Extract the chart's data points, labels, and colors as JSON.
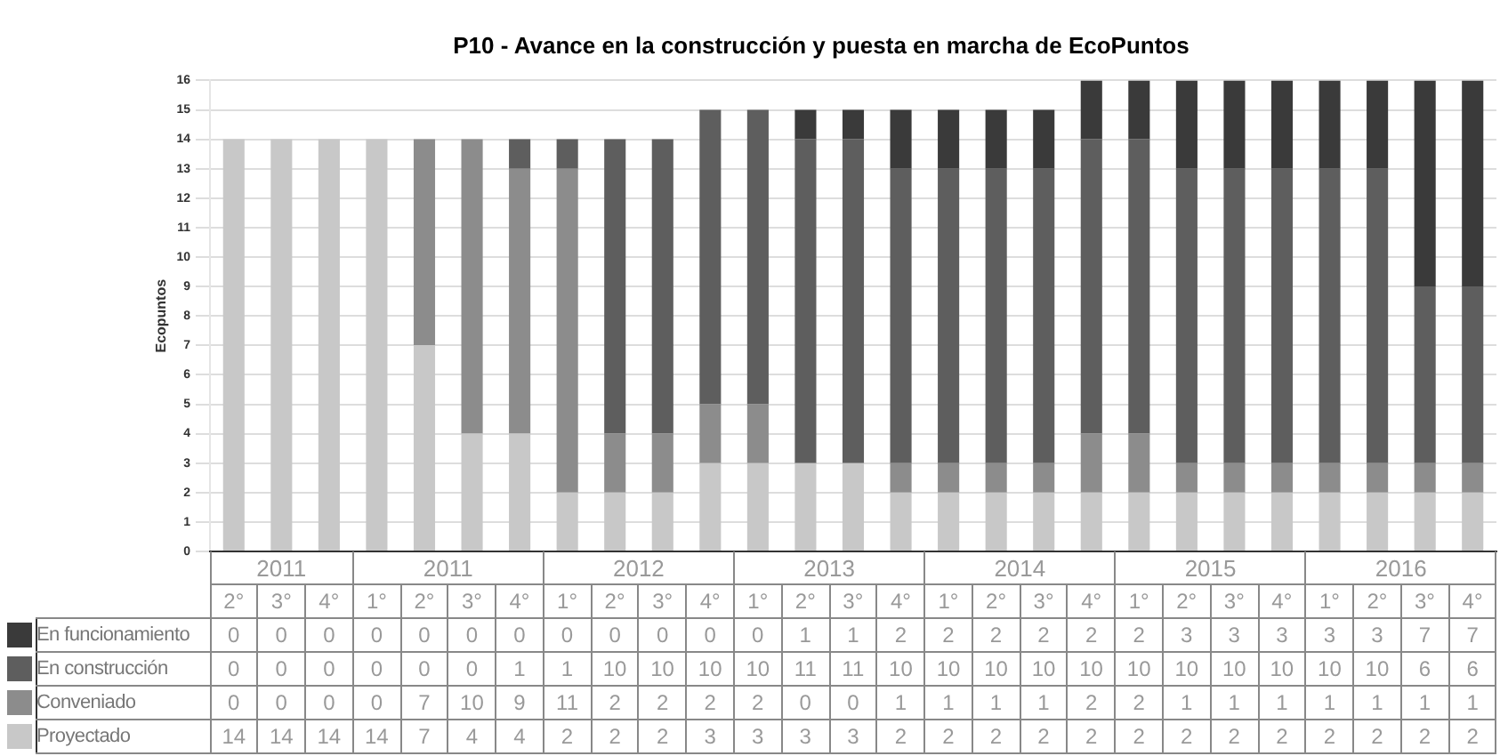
{
  "chart_data": {
    "type": "bar",
    "stacked": true,
    "title": "P10 - Avance en la construcción y puesta en marcha de EcoPuntos",
    "ylabel": "Ecopuntos",
    "categories": [
      "2°",
      "3°",
      "4°",
      "1°",
      "2°",
      "3°",
      "4°",
      "1°",
      "2°",
      "3°",
      "4°",
      "1°",
      "2°",
      "3°",
      "4°",
      "1°",
      "2°",
      "3°",
      "4°",
      "1°",
      "2°",
      "3°",
      "4°",
      "1°",
      "2°",
      "3°",
      "4°"
    ],
    "annotations": [
      "2011",
      "2011",
      "2012",
      "2013",
      "2014",
      "2015",
      "2016"
    ],
    "series": [
      {
        "name": "Proyectado",
        "color": "#c8c8c8",
        "values": [
          14,
          14,
          14,
          14,
          7,
          4,
          4,
          2,
          2,
          2,
          3,
          3,
          3,
          3,
          2,
          2,
          2,
          2,
          2,
          2,
          2,
          2,
          2,
          2,
          2,
          2,
          2
        ]
      },
      {
        "name": "Conveniado",
        "color": "#8c8c8c",
        "values": [
          0,
          0,
          0,
          0,
          7,
          10,
          9,
          11,
          2,
          2,
          2,
          2,
          0,
          0,
          1,
          1,
          1,
          1,
          2,
          2,
          1,
          1,
          1,
          1,
          1,
          1,
          1
        ]
      },
      {
        "name": "En construcción",
        "color": "#5e5e5e",
        "values": [
          0,
          0,
          0,
          0,
          0,
          0,
          1,
          1,
          10,
          10,
          10,
          10,
          11,
          11,
          10,
          10,
          10,
          10,
          10,
          10,
          10,
          10,
          10,
          10,
          10,
          6,
          6
        ]
      },
      {
        "name": "En funcionamiento",
        "color": "#3a3a3a",
        "values": [
          0,
          0,
          0,
          0,
          0,
          0,
          0,
          0,
          0,
          0,
          0,
          0,
          1,
          1,
          2,
          2,
          2,
          2,
          2,
          2,
          3,
          3,
          3,
          3,
          3,
          7,
          7
        ]
      }
    ],
    "ylim": [
      0,
      16
    ],
    "yticks": [
      0,
      1,
      2,
      3,
      4,
      5,
      6,
      7,
      8,
      9,
      10,
      11,
      12,
      13,
      14,
      15,
      16
    ],
    "grid": "y",
    "legend": "bottom",
    "data_labels": true
  }
}
